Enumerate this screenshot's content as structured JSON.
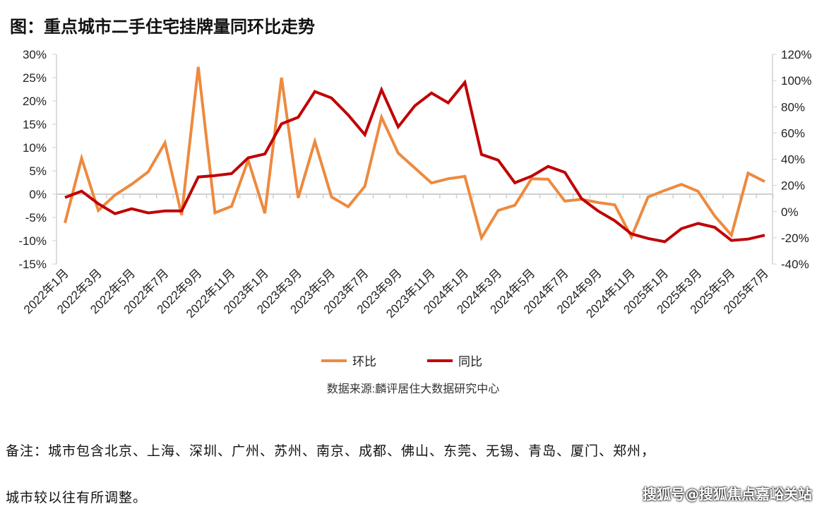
{
  "title": "图：重点城市二手住宅挂牌量同环比走势",
  "chart_data": {
    "type": "line",
    "title": "图：重点城市二手住宅挂牌量同环比走势",
    "x": [
      "2022年1月",
      "2022年2月",
      "2022年3月",
      "2022年4月",
      "2022年5月",
      "2022年6月",
      "2022年7月",
      "2022年8月",
      "2022年9月",
      "2022年10月",
      "2022年11月",
      "2022年12月",
      "2023年1月",
      "2023年2月",
      "2023年3月",
      "2023年4月",
      "2023年5月",
      "2023年6月",
      "2023年7月",
      "2023年8月",
      "2023年9月",
      "2023年10月",
      "2023年11月",
      "2023年12月",
      "2024年1月",
      "2024年2月",
      "2024年3月",
      "2024年4月",
      "2024年5月",
      "2024年6月",
      "2024年7月",
      "2024年8月",
      "2024年9月",
      "2024年10月",
      "2024年11月",
      "2024年12月",
      "2025年1月",
      "2025年2月",
      "2025年3月",
      "2025年4月",
      "2025年5月",
      "2025年6月",
      "2025年7月"
    ],
    "x_tick_labels": [
      "2022年1月",
      "2022年3月",
      "2022年5月",
      "2022年7月",
      "2022年9月",
      "2022年11月",
      "2023年1月",
      "2023年3月",
      "2023年5月",
      "2023年7月",
      "2023年9月",
      "2023年11月",
      "2024年1月",
      "2024年3月",
      "2024年5月",
      "2024年7月",
      "2024年9月",
      "2024年11月",
      "2025年1月",
      "2025年3月",
      "2025年5月",
      "2025年7月"
    ],
    "y_left": {
      "ylim": [
        -15,
        30
      ],
      "ticks": [
        "-15%",
        "-10%",
        "-5%",
        "0%",
        "5%",
        "10%",
        "15%",
        "20%",
        "25%",
        "30%"
      ]
    },
    "y_right": {
      "ylim": [
        -40,
        120
      ],
      "ticks": [
        "-40%",
        "-20%",
        "0%",
        "20%",
        "40%",
        "60%",
        "80%",
        "100%",
        "120%"
      ]
    },
    "series": [
      {
        "name": "环比",
        "axis": "left",
        "color": "#ED8A3F",
        "values": [
          -6.2,
          7.7,
          -3.5,
          -0.2,
          2.1,
          4.8,
          11,
          -4.5,
          27.3,
          -4,
          -2.6,
          7.3,
          -4.1,
          25,
          -0.8,
          11.3,
          -0.6,
          -2.7,
          1.7,
          16.5,
          8.8,
          5.6,
          2.4,
          3.3,
          3.8,
          -9.4,
          -3.5,
          -2.4,
          3.3,
          3.2,
          -1.5,
          -1.1,
          -1.8,
          -2.3,
          -9.2,
          -0.6,
          0.8,
          2.1,
          0.6,
          -4.7,
          -8.8,
          4.5,
          2.7
        ]
      },
      {
        "name": "同比",
        "axis": "right",
        "color": "#C00000",
        "values": [
          10.8,
          15.6,
          6,
          -1.6,
          2.2,
          -1,
          0.5,
          0.5,
          26.4,
          27.5,
          29,
          41,
          44,
          67,
          72,
          91.6,
          86.7,
          73.8,
          58.7,
          93,
          64.7,
          80.8,
          90.5,
          83,
          98.6,
          43.6,
          39.3,
          22,
          27,
          34.5,
          30,
          10,
          0.5,
          -7,
          -17,
          -20.5,
          -23,
          -13,
          -9,
          -12,
          -22,
          -21,
          -18
        ]
      }
    ],
    "legend": "bottom",
    "grid": false
  },
  "source": "数据来源:麟评居住大数据研究中心",
  "note_line1": "备注：城市包含北京、上海、深圳、广州、苏州、南京、成都、佛山、东莞、无锡、青岛、厦门、郑州，",
  "note_line2": "城市较以往有所调整。",
  "watermark": "搜狐号@搜狐焦点嘉峪关站"
}
